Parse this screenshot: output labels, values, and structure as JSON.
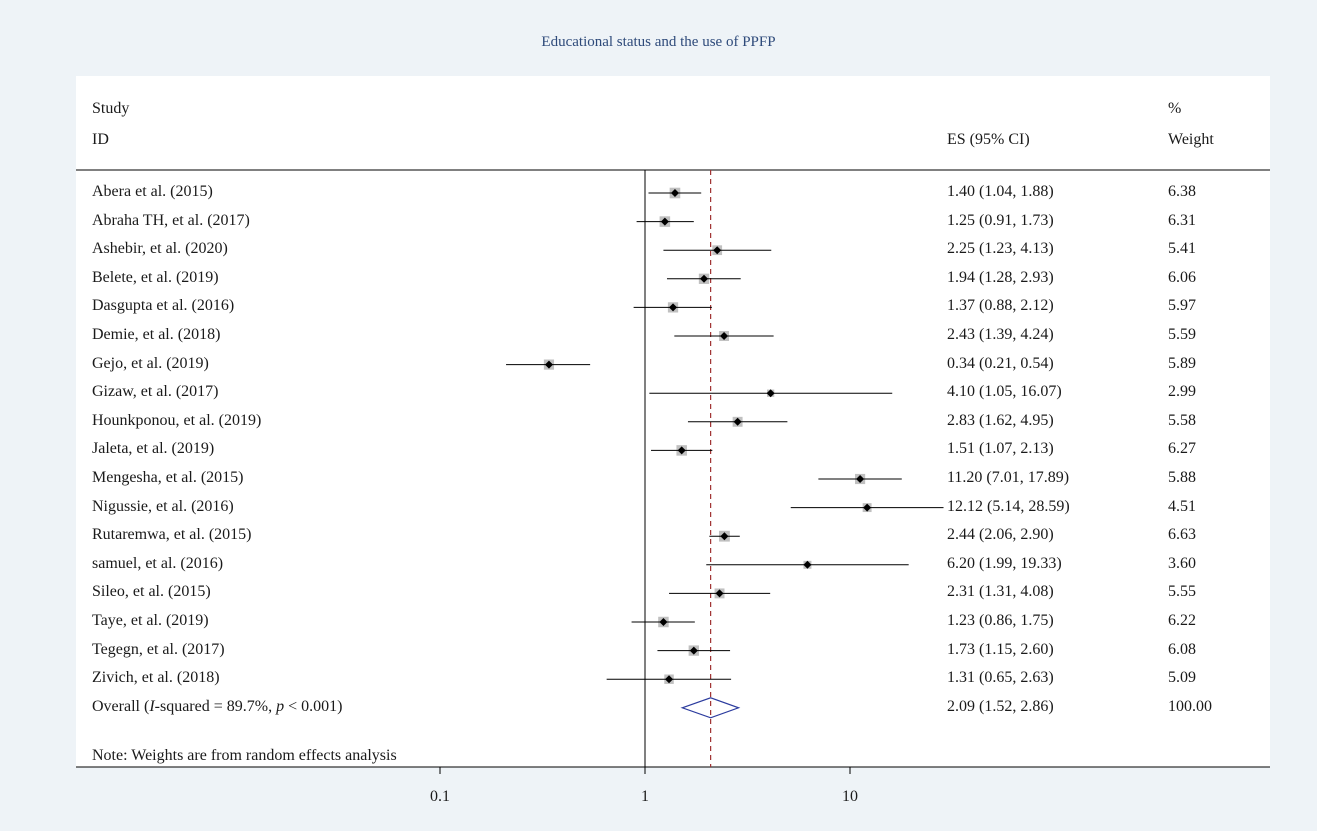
{
  "chart_data": {
    "type": "forest",
    "title": "Educational status and the use of PPFP",
    "headers": {
      "study_line1": "Study",
      "study_line2": "ID",
      "es": "ES (95% CI)",
      "weight_line1": "%",
      "weight_line2": "Weight"
    },
    "x_scale": "log",
    "x_ticks": [
      {
        "value": 0.1,
        "label": "0.1"
      },
      {
        "value": 1,
        "label": "1"
      },
      {
        "value": 10,
        "label": "10"
      }
    ],
    "null_line": 1,
    "studies": [
      {
        "label": "Abera et al. (2015)",
        "es": 1.4,
        "lo": 1.04,
        "hi": 1.88,
        "es_text": "1.40 (1.04, 1.88)",
        "weight": "6.38"
      },
      {
        "label": "Abraha TH, et al. (2017)",
        "es": 1.25,
        "lo": 0.91,
        "hi": 1.73,
        "es_text": "1.25 (0.91, 1.73)",
        "weight": "6.31"
      },
      {
        "label": "Ashebir, et al. (2020)",
        "es": 2.25,
        "lo": 1.23,
        "hi": 4.13,
        "es_text": "2.25 (1.23, 4.13)",
        "weight": "5.41"
      },
      {
        "label": "Belete, et al. (2019)",
        "es": 1.94,
        "lo": 1.28,
        "hi": 2.93,
        "es_text": "1.94 (1.28, 2.93)",
        "weight": "6.06"
      },
      {
        "label": "Dasgupta et al. (2016)",
        "es": 1.37,
        "lo": 0.88,
        "hi": 2.12,
        "es_text": "1.37 (0.88, 2.12)",
        "weight": "5.97"
      },
      {
        "label": "Demie, et al. (2018)",
        "es": 2.43,
        "lo": 1.39,
        "hi": 4.24,
        "es_text": "2.43 (1.39, 4.24)",
        "weight": "5.59"
      },
      {
        "label": "Gejo, et al. (2019)",
        "es": 0.34,
        "lo": 0.21,
        "hi": 0.54,
        "es_text": "0.34 (0.21, 0.54)",
        "weight": "5.89"
      },
      {
        "label": "Gizaw, et al. (2017)",
        "es": 4.1,
        "lo": 1.05,
        "hi": 16.07,
        "es_text": "4.10 (1.05, 16.07)",
        "weight": "2.99"
      },
      {
        "label": "Hounkponou, et al. (2019)",
        "es": 2.83,
        "lo": 1.62,
        "hi": 4.95,
        "es_text": "2.83 (1.62, 4.95)",
        "weight": "5.58"
      },
      {
        "label": "Jaleta, et al. (2019)",
        "es": 1.51,
        "lo": 1.07,
        "hi": 2.13,
        "es_text": "1.51 (1.07, 2.13)",
        "weight": "6.27"
      },
      {
        "label": "Mengesha, et al. (2015)",
        "es": 11.2,
        "lo": 7.01,
        "hi": 17.89,
        "es_text": "11.20 (7.01, 17.89)",
        "weight": "5.88"
      },
      {
        "label": "Nigussie, et al. (2016)",
        "es": 12.12,
        "lo": 5.14,
        "hi": 28.59,
        "es_text": "12.12 (5.14, 28.59)",
        "weight": "4.51"
      },
      {
        "label": "Rutaremwa, et al. (2015)",
        "es": 2.44,
        "lo": 2.06,
        "hi": 2.9,
        "es_text": "2.44 (2.06, 2.90)",
        "weight": "6.63"
      },
      {
        "label": "samuel, et al. (2016)",
        "es": 6.2,
        "lo": 1.99,
        "hi": 19.33,
        "es_text": "6.20 (1.99, 19.33)",
        "weight": "3.60"
      },
      {
        "label": "Sileo, et al. (2015)",
        "es": 2.31,
        "lo": 1.31,
        "hi": 4.08,
        "es_text": "2.31 (1.31, 4.08)",
        "weight": "5.55"
      },
      {
        "label": "Taye, et al. (2019)",
        "es": 1.23,
        "lo": 0.86,
        "hi": 1.75,
        "es_text": "1.23 (0.86, 1.75)",
        "weight": "6.22"
      },
      {
        "label": "Tegegn, et al. (2017)",
        "es": 1.73,
        "lo": 1.15,
        "hi": 2.6,
        "es_text": "1.73 (1.15, 2.60)",
        "weight": "6.08"
      },
      {
        "label": "Zivich, et al. (2018)",
        "es": 1.31,
        "lo": 0.65,
        "hi": 2.63,
        "es_text": "1.31 (0.65, 2.63)",
        "weight": "5.09"
      }
    ],
    "overall": {
      "label_prefix": "Overall (",
      "label_italic_i": "I",
      "label_mid": "-squared = 89.7%, ",
      "label_italic_p": "p",
      "label_suffix": " < 0.001)",
      "es": 2.09,
      "lo": 1.52,
      "hi": 2.86,
      "es_text": "2.09 (1.52, 2.86)",
      "weight": "100.00"
    },
    "note": "Note: Weights are from random effects analysis",
    "colors": {
      "background": "#eef3f7",
      "title": "#2e4a7a",
      "box": "#c0c0c0",
      "point": "#000000",
      "overall_diamond": "#2b3b9e",
      "overall_line": "#a03030"
    }
  }
}
